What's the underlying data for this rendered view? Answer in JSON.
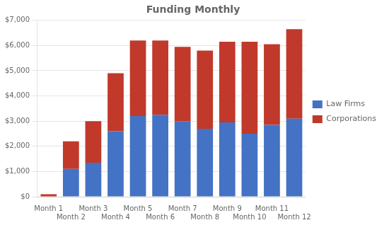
{
  "chart_data": {
    "type": "bar",
    "title": "Funding Monthly",
    "categories": [
      "Month 1",
      "Month 2",
      "Month 3",
      "Month 4",
      "Month 5",
      "Month 6",
      "Month 7",
      "Month 8",
      "Month 9",
      "Month 10",
      "Month 11",
      "Month 12"
    ],
    "series": [
      {
        "name": "Law Firms",
        "color": "#4472c4",
        "values": [
          0,
          1100,
          1350,
          2600,
          3200,
          3250,
          3000,
          2700,
          2950,
          2500,
          2850,
          3100
        ]
      },
      {
        "name": "Corporations",
        "color": "#c0392b",
        "values": [
          100,
          1100,
          1650,
          2300,
          3000,
          2950,
          2950,
          3100,
          3200,
          3650,
          3200,
          3550
        ]
      }
    ],
    "stacked": true,
    "ylim": [
      0,
      7000
    ],
    "yticks": [
      {
        "value": 0,
        "label": "$0"
      },
      {
        "value": 1000,
        "label": "$1,000"
      },
      {
        "value": 2000,
        "label": "$2,000"
      },
      {
        "value": 3000,
        "label": "$3,000"
      },
      {
        "value": 4000,
        "label": "$4,000"
      },
      {
        "value": 5000,
        "label": "$5,000"
      },
      {
        "value": 6000,
        "label": "$6,000"
      },
      {
        "value": 7000,
        "label": "$7,000"
      }
    ],
    "grid": true,
    "legend": "right"
  }
}
